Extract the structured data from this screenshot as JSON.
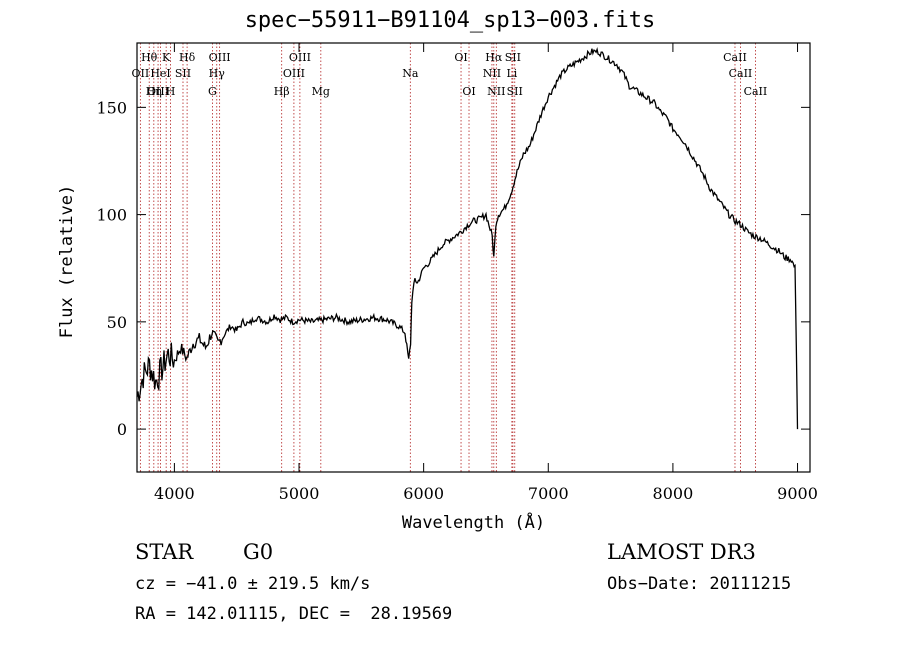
{
  "chart_data": {
    "type": "line",
    "title": "spec−55911−B91104_sp13−003.fits",
    "xlabel": "Wavelength (Å)",
    "ylabel": "Flux (relative)",
    "xlim": [
      3700,
      9100
    ],
    "ylim": [
      -20,
      180
    ],
    "xticks": [
      4000,
      5000,
      6000,
      7000,
      8000,
      9000
    ],
    "yticks": [
      0,
      50,
      100,
      150
    ],
    "series": [
      {
        "name": "flux",
        "x": [
          3700,
          3750,
          3800,
          3850,
          3900,
          3950,
          4000,
          4050,
          4100,
          4150,
          4200,
          4250,
          4300,
          4350,
          4400,
          4450,
          4500,
          4550,
          4600,
          4650,
          4700,
          4750,
          4800,
          4850,
          4900,
          4950,
          5000,
          5100,
          5200,
          5300,
          5400,
          5500,
          5600,
          5700,
          5800,
          5850,
          5880,
          5895,
          5905,
          5930,
          5950,
          6000,
          6050,
          6100,
          6150,
          6200,
          6250,
          6300,
          6350,
          6400,
          6450,
          6500,
          6550,
          6563,
          6580,
          6600,
          6650,
          6700,
          6750,
          6800,
          6850,
          6900,
          6950,
          7000,
          7050,
          7100,
          7150,
          7200,
          7250,
          7300,
          7350,
          7400,
          7450,
          7500,
          7550,
          7600,
          7650,
          7700,
          7750,
          7800,
          7850,
          7900,
          7950,
          8000,
          8050,
          8100,
          8150,
          8200,
          8250,
          8300,
          8350,
          8400,
          8450,
          8500,
          8550,
          8600,
          8650,
          8700,
          8750,
          8800,
          8850,
          8900,
          8950,
          8980,
          8990,
          9000
        ],
        "values": [
          15,
          25,
          30,
          22,
          28,
          35,
          32,
          38,
          33,
          40,
          42,
          38,
          45,
          40,
          44,
          48,
          46,
          50,
          49,
          52,
          51,
          50,
          53,
          51,
          52,
          50,
          51,
          50,
          51,
          52,
          50,
          51,
          52,
          51,
          48,
          45,
          32,
          40,
          60,
          70,
          68,
          75,
          78,
          82,
          86,
          88,
          90,
          92,
          95,
          97,
          98,
          100,
          90,
          80,
          96,
          100,
          103,
          110,
          120,
          128,
          132,
          140,
          148,
          155,
          160,
          165,
          168,
          170,
          172,
          174,
          176,
          176,
          174,
          172,
          170,
          166,
          160,
          158,
          156,
          154,
          152,
          148,
          145,
          140,
          137,
          133,
          128,
          123,
          118,
          112,
          108,
          104,
          100,
          97,
          95,
          92,
          90,
          89,
          87,
          85,
          83,
          80,
          79,
          75,
          40,
          0
        ]
      }
    ],
    "spectral_lines": [
      {
        "label": "OII",
        "x": 3727,
        "row": 2
      },
      {
        "label": "Hθ",
        "x": 3798,
        "row": 1
      },
      {
        "label": "OIII",
        "x": 3869,
        "row": 3
      },
      {
        "label": "HeI",
        "x": 3889,
        "row": 2
      },
      {
        "label": "K",
        "x": 3934,
        "row": 1
      },
      {
        "label": "Hη",
        "x": 3835,
        "row": 3
      },
      {
        "label": "SII",
        "x": 4069,
        "row": 2
      },
      {
        "label": "H",
        "x": 3969,
        "row": 3
      },
      {
        "label": "Hδ",
        "x": 4102,
        "row": 1
      },
      {
        "label": "OIII",
        "x": 4363,
        "row": 1
      },
      {
        "label": "Hγ",
        "x": 4340,
        "row": 2
      },
      {
        "label": "G",
        "x": 4305,
        "row": 3
      },
      {
        "label": "Hβ",
        "x": 4861,
        "row": 3
      },
      {
        "label": "OIII",
        "x": 4959,
        "row": 2
      },
      {
        "label": "OIII",
        "x": 5007,
        "row": 1
      },
      {
        "label": "Mg",
        "x": 5175,
        "row": 3
      },
      {
        "label": "Na",
        "x": 5893,
        "row": 2
      },
      {
        "label": "OI",
        "x": 6300,
        "row": 1
      },
      {
        "label": "OI",
        "x": 6364,
        "row": 3
      },
      {
        "label": "Hα",
        "x": 6563,
        "row": 1
      },
      {
        "label": "NII",
        "x": 6548,
        "row": 2
      },
      {
        "label": "NII",
        "x": 6583,
        "row": 3
      },
      {
        "label": "SII",
        "x": 6716,
        "row": 1
      },
      {
        "label": "Li",
        "x": 6708,
        "row": 2
      },
      {
        "label": "SII",
        "x": 6731,
        "row": 3
      },
      {
        "label": "CaII",
        "x": 8498,
        "row": 1
      },
      {
        "label": "CaII",
        "x": 8542,
        "row": 2
      },
      {
        "label": "CaII",
        "x": 8662,
        "row": 3
      }
    ]
  },
  "info": {
    "object_class": "STAR",
    "subclass": "G0",
    "survey": "LAMOST DR3",
    "redshift": "cz = −41.0 ± 219.5 km/s",
    "obs_date": "Obs−Date: 20111215",
    "coords": "RA = 142.01115, DEC =  28.19569"
  },
  "colors": {
    "line": "#000000",
    "marker": "#b22222",
    "axis": "#000000"
  }
}
